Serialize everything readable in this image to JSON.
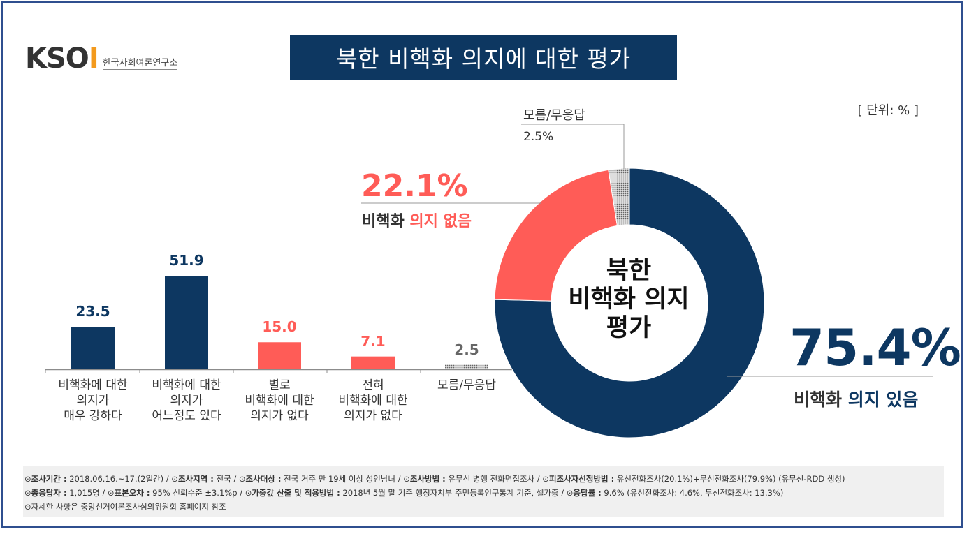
{
  "page": {
    "title": "북한 비핵화 의지에 대한 평가",
    "unit": "[ 단위: % ]",
    "logo": {
      "mark": "KSOI",
      "subtitle": "한국사회여론연구소"
    }
  },
  "colors": {
    "navy": "#0d3761",
    "red": "#ff5c57",
    "gray": "#9a9a9a",
    "title_bg": "#0d3761"
  },
  "chart_data": [
    {
      "type": "bar",
      "categories": [
        "비핵화에 대한 의지가 매우 강하다",
        "비핵화에 대한 의지가 어느정도 있다",
        "별로 비핵화에 대한 의지가 없다",
        "전혀 비핵화에 대한 의지가 없다",
        "모름/무응답"
      ],
      "values": [
        23.5,
        51.9,
        15.0,
        7.1,
        2.5
      ],
      "value_labels": [
        "23.5",
        "51.9",
        "15.0",
        "7.1",
        "2.5"
      ],
      "colors": [
        "#0d3761",
        "#0d3761",
        "#ff5c57",
        "#ff5c57",
        "#a8a8a8"
      ],
      "label_lines": [
        [
          "비핵화에 대한",
          "의지가",
          "매우 강하다"
        ],
        [
          "비핵화에 대한",
          "의지가",
          "어느정도 있다"
        ],
        [
          "별로",
          "비핵화에 대한",
          "의지가 없다"
        ],
        [
          "전혀",
          "비핵화에 대한",
          "의지가 없다"
        ],
        [
          "모름/무응답"
        ]
      ],
      "ylim": [
        0,
        100
      ]
    },
    {
      "type": "pie",
      "center_label": [
        "북한",
        "비핵화 의지",
        "평가"
      ],
      "slices": [
        {
          "name": "비핵화 의지 있음",
          "value": 75.4,
          "label": "75.4%",
          "color": "#0d3761"
        },
        {
          "name": "비핵화 의지 없음",
          "value": 22.1,
          "label": "22.1%",
          "color": "#ff5c57"
        },
        {
          "name": "모름/무응답",
          "value": 2.5,
          "label": "2.5%",
          "color": "#a8a8a8"
        }
      ],
      "legend_parts": {
        "yes": {
          "pre": "비핵화",
          "post": " 의지 있음"
        },
        "no": {
          "pre": "비핵화",
          "post": " 의지 없음"
        },
        "dk": {
          "text": "모름/무응답"
        }
      }
    }
  ],
  "footer": {
    "line1": [
      {
        "label": "조사기간 :",
        "value": " 2018.06.16.~17.(2일간) / "
      },
      {
        "label": "조사지역 :",
        "value": " 전국 / "
      },
      {
        "label": "조사대상 :",
        "value": " 전국 거주 만 19세 이상 성인남녀 / "
      },
      {
        "label": "조사방법 :",
        "value": " 유무선 병행 전화면접조사 / "
      },
      {
        "label": "피조사자선정방법 :",
        "value": " 유선전화조사(20.1%)+무선전화조사(79.9%) (유무선-RDD 생성)"
      }
    ],
    "line2": [
      {
        "label": "총응답자 :",
        "value": " 1,015명 / "
      },
      {
        "label": "표본오차 :",
        "value": " 95% 신뢰수준 ±3.1%p / "
      },
      {
        "label": "가중값 산출 및 적용방법 :",
        "value": " 2018년 5월 말 기준 행정자치부 주민등록인구통계 기준, 셀가중 / "
      },
      {
        "label": "응답률 :",
        "value": " 9.6% (유선전화조사: 4.6%, 무선전화조사: 13.3%)"
      }
    ],
    "line3": "자세한 사항은 중앙선거여론조사심의위원회 홈페이지 참조",
    "bullet": "⊙"
  }
}
